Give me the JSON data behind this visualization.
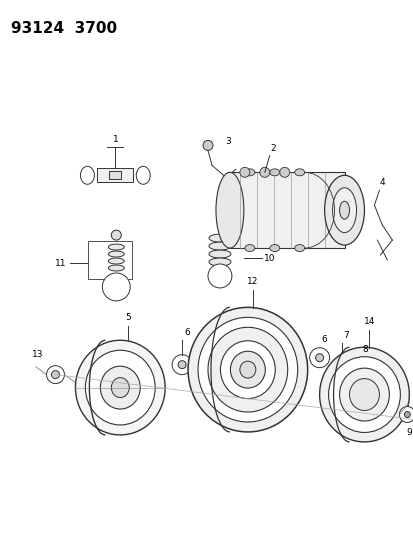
{
  "title": "93124  3700",
  "bg_color": "#ffffff",
  "text_color": "#000000",
  "fig_width": 4.14,
  "fig_height": 5.33,
  "dpi": 100,
  "lc": "#333333",
  "lw": 0.7,
  "label_fs": 6.5
}
